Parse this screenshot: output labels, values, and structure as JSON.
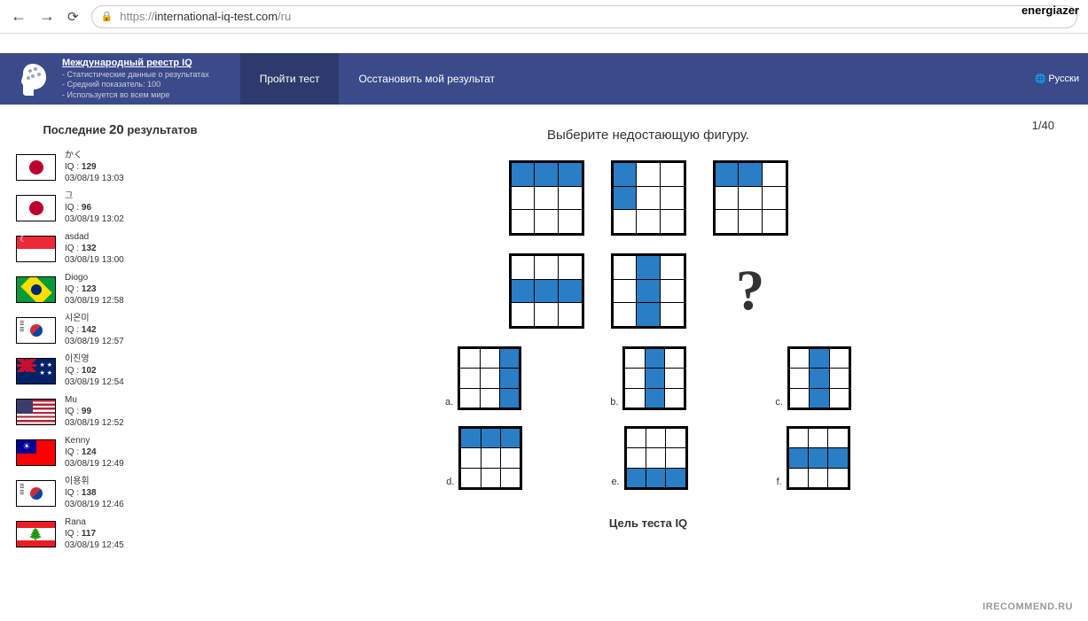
{
  "browser": {
    "url_prefix": "https://",
    "url_host": "international-iq-test.com",
    "url_path": "/ru",
    "username": "energiazer"
  },
  "header": {
    "title": "Международный реестр IQ",
    "sub1": "- Статистические данные о результатах",
    "sub2": "- Средний показатель: 100",
    "sub3": "- Используется во всем мире",
    "nav_take": "Пройти тест",
    "nav_recover": "Осстановить мой результат",
    "lang": "Русски"
  },
  "sidebar": {
    "title_prefix": "Последние ",
    "title_num": "20",
    "title_suffix": " результатов",
    "results": [
      {
        "name": "かく",
        "iq": "129",
        "date": "03/08/19 13:03",
        "flag": "flag-jp"
      },
      {
        "name": "그",
        "iq": "96",
        "date": "03/08/19 13:02",
        "flag": "flag-jp"
      },
      {
        "name": "asdad",
        "iq": "132",
        "date": "03/08/19 13:00",
        "flag": "flag-sg"
      },
      {
        "name": "Diogo",
        "iq": "123",
        "date": "03/08/19 12:58",
        "flag": "flag-br"
      },
      {
        "name": "시온미",
        "iq": "142",
        "date": "03/08/19 12:57",
        "flag": "flag-kr"
      },
      {
        "name": "이진영",
        "iq": "102",
        "date": "03/08/19 12:54",
        "flag": "flag-au"
      },
      {
        "name": "Mu",
        "iq": "99",
        "date": "03/08/19 12:52",
        "flag": "flag-us"
      },
      {
        "name": "Kenny",
        "iq": "124",
        "date": "03/08/19 12:49",
        "flag": "flag-tw"
      },
      {
        "name": "이용휘",
        "iq": "138",
        "date": "03/08/19 12:46",
        "flag": "flag-kr"
      },
      {
        "name": "Rana",
        "iq": "117",
        "date": "03/08/19 12:45",
        "flag": "flag-lb"
      }
    ]
  },
  "quiz": {
    "counter": "1/40",
    "title": "Выберите недостающую фигуру.",
    "iq_label": "IQ : ",
    "qmark": "?",
    "footer": "Цель теста IQ",
    "matrix": [
      [
        [
          1,
          1,
          1,
          0,
          0,
          0,
          0,
          0,
          0
        ],
        [
          1,
          0,
          0,
          1,
          0,
          0,
          0,
          0,
          0
        ],
        [
          1,
          1,
          0,
          0,
          0,
          0,
          0,
          0,
          0
        ]
      ],
      [
        [
          0,
          0,
          0,
          1,
          1,
          1,
          0,
          0,
          0
        ],
        [
          0,
          1,
          0,
          0,
          1,
          0,
          0,
          1,
          0
        ],
        null
      ]
    ],
    "answers": [
      {
        "label": "a.",
        "grid": [
          0,
          0,
          1,
          0,
          0,
          1,
          0,
          0,
          1
        ]
      },
      {
        "label": "b.",
        "grid": [
          0,
          1,
          0,
          0,
          1,
          0,
          0,
          1,
          0
        ]
      },
      {
        "label": "c.",
        "grid": [
          0,
          1,
          0,
          0,
          1,
          0,
          0,
          1,
          0
        ]
      },
      {
        "label": "d.",
        "grid": [
          1,
          1,
          1,
          0,
          0,
          0,
          0,
          0,
          0
        ]
      },
      {
        "label": "e.",
        "grid": [
          0,
          0,
          0,
          0,
          0,
          0,
          1,
          1,
          1
        ]
      },
      {
        "label": "f.",
        "grid": [
          0,
          0,
          0,
          1,
          1,
          1,
          0,
          0,
          0
        ]
      }
    ]
  },
  "watermark": "IRECOMMEND.RU"
}
